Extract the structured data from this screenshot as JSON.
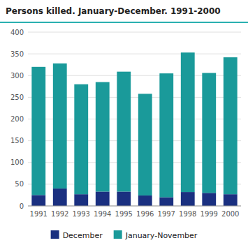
{
  "chart_data": {
    "type": "bar",
    "title": "Persons killed. January-December. 1991-2000",
    "categories": [
      "1991",
      "1992",
      "1993",
      "1994",
      "1995",
      "1996",
      "1997",
      "1998",
      "1999",
      "2000"
    ],
    "series": [
      {
        "name": "December",
        "color": "#1a3080",
        "values": [
          25,
          40,
          27,
          33,
          33,
          24,
          20,
          32,
          30,
          27
        ]
      },
      {
        "name": "January-November",
        "color": "#1a9a9a",
        "values": [
          295,
          288,
          253,
          252,
          276,
          234,
          285,
          321,
          276,
          315
        ]
      }
    ],
    "stacked": true,
    "ylim": [
      0,
      400
    ],
    "yticks": [
      0,
      50,
      100,
      150,
      200,
      250,
      300,
      350,
      400
    ],
    "grid": true,
    "legend": "bottom"
  }
}
